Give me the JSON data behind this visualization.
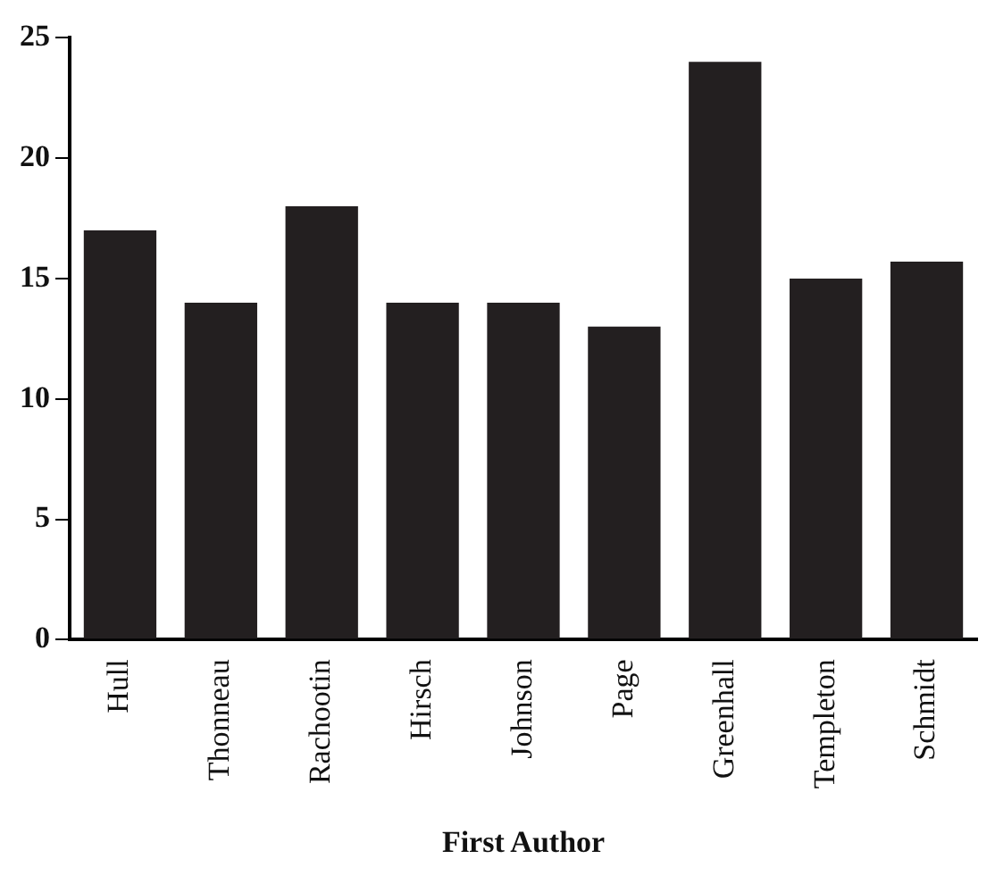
{
  "chart_data": {
    "type": "bar",
    "xlabel": "First Author",
    "categories": [
      "Hull",
      "Thonneau",
      "Rachootin",
      "Hirsch",
      "Johnson",
      "Page",
      "Greenhall",
      "Templeton",
      "Schmidt"
    ],
    "values": [
      17,
      14,
      18,
      14,
      14,
      13,
      24,
      15,
      15.7
    ],
    "color": "#231f20",
    "ylim": [
      0,
      25
    ],
    "yticks": [
      0,
      5,
      10,
      15,
      20,
      25
    ],
    "grid": false,
    "legend": false
  }
}
